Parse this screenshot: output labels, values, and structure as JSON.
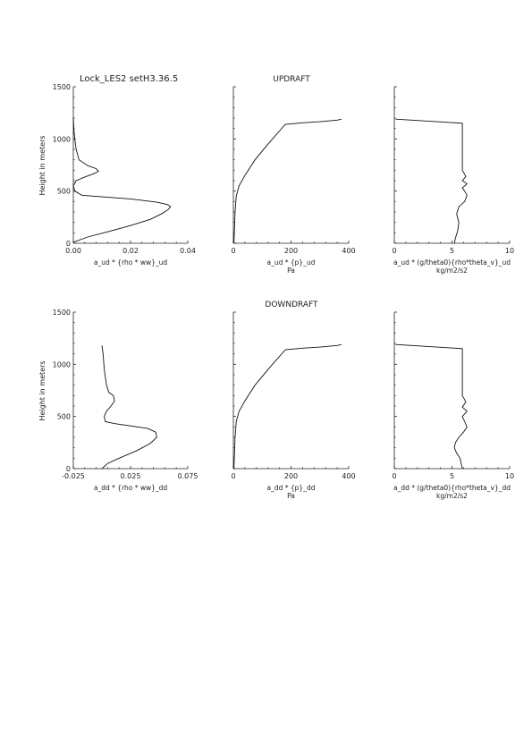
{
  "figure": {
    "run_label": "Lock_LES2 setH3.36.5",
    "ylabel": "Height in meters"
  },
  "rows": [
    {
      "title": "UPDRAFT"
    },
    {
      "title": "DOWNDRAFT"
    }
  ],
  "chart_data": [
    {
      "type": "line",
      "row": 0,
      "col": 0,
      "xlim": [
        0,
        0.04
      ],
      "ylim": [
        0,
        1500
      ],
      "xticks": [
        0,
        0.02,
        0.04
      ],
      "xtick_labels": [
        "0.00",
        "0.02",
        "0.04"
      ],
      "yticks": [
        0,
        500,
        1000,
        1500
      ],
      "ytick_labels": [
        "0",
        "500",
        "1000",
        "1500"
      ],
      "xlabel": "a_ud * {rho * ww}_ud",
      "xlabel2": "",
      "ylabel": "Height in meters",
      "series": [
        {
          "name": "profile",
          "x": [
            0.0,
            0.005,
            0.012,
            0.02,
            0.027,
            0.031,
            0.033,
            0.034,
            0.033,
            0.029,
            0.02,
            0.01,
            0.003,
            0.0005,
            0.0,
            0.001,
            0.004,
            0.007,
            0.0088,
            0.008,
            0.005,
            0.002,
            0.001,
            0.0005,
            0.0002,
            0.0
          ],
          "y": [
            10,
            60,
            110,
            170,
            230,
            285,
            320,
            350,
            370,
            395,
            425,
            445,
            460,
            500,
            550,
            600,
            635,
            665,
            690,
            715,
            745,
            800,
            900,
            1000,
            1100,
            1200
          ]
        }
      ]
    },
    {
      "type": "line",
      "row": 0,
      "col": 1,
      "xlim": [
        0,
        400
      ],
      "ylim": [
        0,
        1500
      ],
      "xticks": [
        0,
        200,
        400
      ],
      "xtick_labels": [
        "0",
        "200",
        "400"
      ],
      "yticks": [
        0,
        500,
        1000,
        1500
      ],
      "ytick_labels": [
        "",
        "",
        "",
        ""
      ],
      "xlabel": "a_ud * {p}_ud",
      "xlabel2": "Pa",
      "series": [
        {
          "name": "profile",
          "x": [
            2,
            4,
            6,
            10,
            20,
            40,
            75,
            120,
            180,
            240,
            300,
            360,
            375
          ],
          "y": [
            0,
            150,
            300,
            450,
            550,
            650,
            800,
            950,
            1140,
            1155,
            1165,
            1180,
            1190
          ]
        }
      ]
    },
    {
      "type": "line",
      "row": 0,
      "col": 2,
      "xlim": [
        0,
        10
      ],
      "ylim": [
        0,
        1500
      ],
      "xticks": [
        0,
        5,
        10
      ],
      "xtick_labels": [
        "0",
        "5",
        "10"
      ],
      "yticks": [
        0,
        500,
        1000,
        1500
      ],
      "ytick_labels": [
        "",
        "",
        "",
        ""
      ],
      "xlabel": "a_ud * (g/theta0){rho*theta_v}_ud",
      "xlabel2": "kg/m2/s2",
      "series": [
        {
          "name": "profile",
          "x": [
            5.2,
            5.3,
            5.5,
            5.6,
            5.4,
            5.6,
            6.1,
            6.3,
            6.1,
            5.9,
            6.3,
            5.9,
            6.2,
            5.9,
            5.9,
            5.9,
            5.9,
            0.1
          ],
          "y": [
            0,
            50,
            120,
            200,
            280,
            350,
            400,
            460,
            500,
            530,
            570,
            600,
            640,
            700,
            900,
            1140,
            1150,
            1190
          ]
        }
      ]
    },
    {
      "type": "line",
      "row": 1,
      "col": 0,
      "xlim": [
        -0.025,
        0.075
      ],
      "ylim": [
        0,
        1500
      ],
      "xticks": [
        -0.025,
        0.025,
        0.075
      ],
      "xtick_labels": [
        "-0.025",
        "0.025",
        "0.075"
      ],
      "yticks": [
        0,
        500,
        1000,
        1500
      ],
      "ytick_labels": [
        "0",
        "500",
        "1000",
        "1500"
      ],
      "xlabel": "a_dd * {rho * ww}_dd",
      "xlabel2": "",
      "ylabel": "Height in meters",
      "series": [
        {
          "name": "profile",
          "x": [
            0.0,
            0.005,
            0.015,
            0.03,
            0.042,
            0.048,
            0.047,
            0.04,
            0.025,
            0.012,
            0.003,
            0.002,
            0.004,
            0.008,
            0.011,
            0.01,
            0.006,
            0.004,
            0.002,
            0.001,
            0.0
          ],
          "y": [
            0,
            50,
            100,
            170,
            240,
            300,
            350,
            385,
            410,
            430,
            450,
            500,
            550,
            600,
            650,
            700,
            730,
            800,
            950,
            1100,
            1180
          ]
        }
      ]
    },
    {
      "type": "line",
      "row": 1,
      "col": 1,
      "xlim": [
        0,
        400
      ],
      "ylim": [
        0,
        1500
      ],
      "xticks": [
        0,
        200,
        400
      ],
      "xtick_labels": [
        "0",
        "200",
        "400"
      ],
      "yticks": [
        0,
        500,
        1000,
        1500
      ],
      "ytick_labels": [
        "",
        "",
        "",
        ""
      ],
      "xlabel": "a_dd * {p}_dd",
      "xlabel2": "Pa",
      "series": [
        {
          "name": "profile",
          "x": [
            2,
            4,
            6,
            10,
            20,
            40,
            75,
            120,
            180,
            240,
            300,
            360,
            375
          ],
          "y": [
            0,
            150,
            300,
            450,
            550,
            650,
            800,
            950,
            1140,
            1155,
            1165,
            1180,
            1190
          ]
        }
      ]
    },
    {
      "type": "line",
      "row": 1,
      "col": 2,
      "xlim": [
        0,
        10
      ],
      "ylim": [
        0,
        1500
      ],
      "xticks": [
        0,
        5,
        10
      ],
      "xtick_labels": [
        "0",
        "5",
        "10"
      ],
      "yticks": [
        0,
        500,
        1000,
        1500
      ],
      "ytick_labels": [
        "",
        "",
        "",
        ""
      ],
      "xlabel": "a_dd * (g/theta0){rho*theta_v}_dd",
      "xlabel2": "kg/m2/s2",
      "series": [
        {
          "name": "profile",
          "x": [
            5.9,
            5.8,
            5.7,
            5.4,
            5.2,
            5.3,
            5.6,
            6.0,
            6.3,
            6.1,
            5.9,
            6.3,
            5.9,
            6.2,
            5.9,
            5.9,
            5.9,
            5.9,
            0.1
          ],
          "y": [
            0,
            50,
            100,
            150,
            200,
            250,
            300,
            350,
            400,
            450,
            500,
            550,
            590,
            640,
            700,
            900,
            1120,
            1150,
            1190
          ]
        }
      ]
    }
  ]
}
